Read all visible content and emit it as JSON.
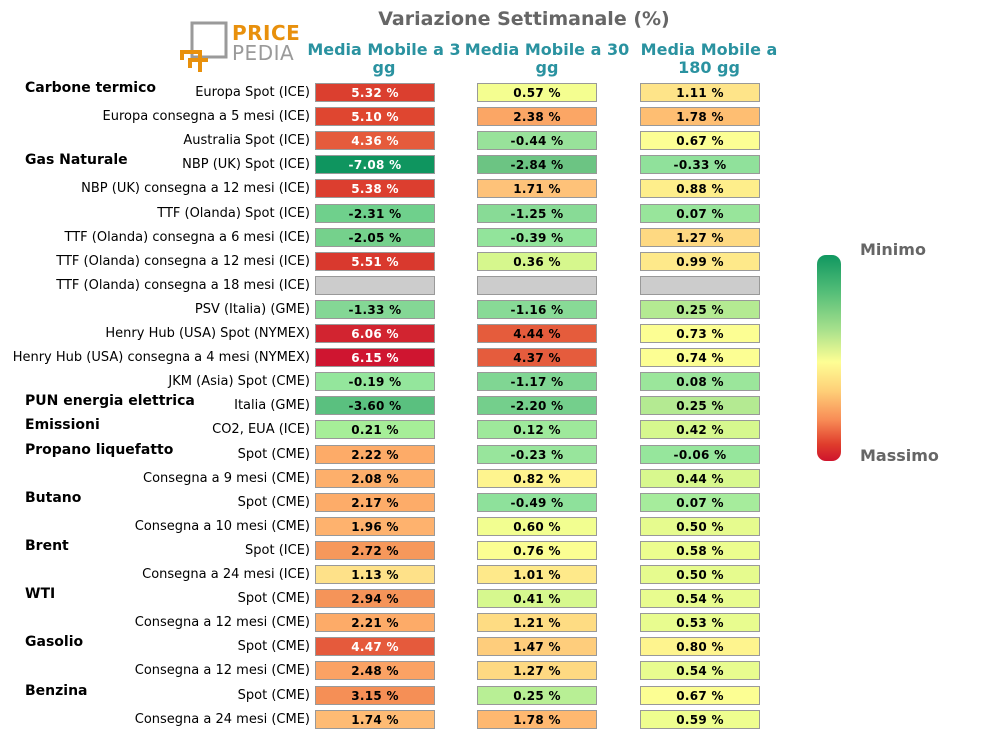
{
  "title": "Variazione Settimanale (%)",
  "logo": {
    "line1": "PRICE",
    "line2": "PEDIA"
  },
  "columns": [
    "Media Mobile a 3 gg",
    "Media Mobile a 30 gg",
    "Media Mobile a 180 gg"
  ],
  "groups": [
    {
      "label": "Carbone termico",
      "row": 0
    },
    {
      "label": "Gas Naturale",
      "row": 3
    },
    {
      "label": "PUN energia elettrica",
      "row": 13
    },
    {
      "label": "Emissioni",
      "row": 14
    },
    {
      "label": "Propano liquefatto",
      "row": 15
    },
    {
      "label": "Butano",
      "row": 17
    },
    {
      "label": "Brent",
      "row": 19
    },
    {
      "label": "WTI",
      "row": 21
    },
    {
      "label": "Gasolio",
      "row": 23
    },
    {
      "label": "Benzina",
      "row": 25
    }
  ],
  "legend": {
    "min_label": "Minimo",
    "max_label": "Massimo"
  },
  "chart_data": {
    "type": "table",
    "title": "Variazione Settimanale (%)",
    "rows": [
      {
        "label": "Europa Spot (ICE)",
        "values": [
          "5.32 %",
          "0.57 %",
          "1.11 %"
        ],
        "colors": [
          "#db3f2f",
          "#f4fe90",
          "#fee489"
        ]
      },
      {
        "label": "Europa consegna a 5 mesi (ICE)",
        "values": [
          "5.10 %",
          "2.38 %",
          "1.78 %"
        ],
        "colors": [
          "#df4630",
          "#fba665",
          "#febe72"
        ]
      },
      {
        "label": "Australia Spot (ICE)",
        "values": [
          "4.36 %",
          "-0.44 %",
          "0.67 %"
        ],
        "colors": [
          "#e55b3c",
          "#98e29a",
          "#fcfe94"
        ]
      },
      {
        "label": "NBP (UK) Spot (ICE)",
        "values": [
          "-7.08 %",
          "-2.84 %",
          "-0.33 %"
        ],
        "colors": [
          "#0f955f",
          "#6cc483",
          "#90e19b"
        ]
      },
      {
        "label": "NBP (UK) consegna a 12 mesi (ICE)",
        "values": [
          "5.38 %",
          "1.71 %",
          "0.88 %"
        ],
        "colors": [
          "#dc3e2f",
          "#fec279",
          "#feee8b"
        ]
      },
      {
        "label": "TTF (Olanda) Spot (ICE)",
        "values": [
          "-2.31 %",
          "-1.25 %",
          "0.07 %"
        ],
        "colors": [
          "#6fd08c",
          "#88db96",
          "#98e59b"
        ]
      },
      {
        "label": "TTF (Olanda) consegna a 6 mesi (ICE)",
        "values": [
          "-2.05 %",
          "-0.39 %",
          "1.27 %"
        ],
        "colors": [
          "#75d18c",
          "#92e49b",
          "#fed982"
        ]
      },
      {
        "label": "TTF (Olanda) consegna a 12 mesi (ICE)",
        "values": [
          "5.51 %",
          "0.36 %",
          "0.99 %"
        ],
        "colors": [
          "#d9392e",
          "#d6f78d",
          "#fee98a"
        ]
      },
      {
        "label": "TTF (Olanda) consegna a 18 mesi (ICE)",
        "values": [
          "",
          "",
          ""
        ],
        "colors": [
          "#cccccc",
          "#cccccc",
          "#cccccc"
        ]
      },
      {
        "label": "PSV (Italia) (GME)",
        "values": [
          "-1.33 %",
          "-1.16 %",
          "0.25 %"
        ],
        "colors": [
          "#84d795",
          "#88da96",
          "#b4ea92"
        ]
      },
      {
        "label": "Henry Hub (USA) Spot (NYMEX)",
        "values": [
          "6.06 %",
          "4.44 %",
          "0.73 %"
        ],
        "colors": [
          "#d22430",
          "#e55c3c",
          "#fcfe93"
        ]
      },
      {
        "label": "Henry Hub (USA) consegna a 4 mesi (NYMEX)",
        "values": [
          "6.15 %",
          "4.37 %",
          "0.74 %"
        ],
        "colors": [
          "#cf1530",
          "#e55c3d",
          "#fcfe93"
        ]
      },
      {
        "label": "JKM (Asia) Spot (CME)",
        "values": [
          "-0.19 %",
          "-1.17 %",
          "0.08 %"
        ],
        "colors": [
          "#94e69c",
          "#80d693",
          "#9be69b"
        ]
      },
      {
        "label": "Italia (GME)",
        "values": [
          "-3.60 %",
          "-2.20 %",
          "0.25 %"
        ],
        "colors": [
          "#5ac07f",
          "#74cf8c",
          "#b4ea92"
        ]
      },
      {
        "label": "CO2, EUA (ICE)",
        "values": [
          "0.21 %",
          "0.12 %",
          "0.42 %"
        ],
        "colors": [
          "#a6ee98",
          "#9ee99b",
          "#d6f88e"
        ]
      },
      {
        "label": "Spot (CME)",
        "values": [
          "2.22 %",
          "-0.23 %",
          "-0.06 %"
        ],
        "colors": [
          "#fdab68",
          "#98e59c",
          "#96e69c"
        ]
      },
      {
        "label": "Consegna a 9 mesi (CME)",
        "values": [
          "2.08 %",
          "0.82 %",
          "0.44 %"
        ],
        "colors": [
          "#fdaf6b",
          "#fef48e",
          "#d8f88e"
        ]
      },
      {
        "label": "Spot (CME)",
        "values": [
          "2.17 %",
          "-0.49 %",
          "0.07 %"
        ],
        "colors": [
          "#fdac69",
          "#8ee19b",
          "#a6ec9c"
        ]
      },
      {
        "label": "Consegna a 10 mesi (CME)",
        "values": [
          "1.96 %",
          "0.60 %",
          "0.50 %"
        ],
        "colors": [
          "#feb26e",
          "#f2fe90",
          "#e6fb8e"
        ]
      },
      {
        "label": "Spot (ICE)",
        "values": [
          "2.72 %",
          "0.76 %",
          "0.58 %"
        ],
        "colors": [
          "#f6985b",
          "#fbfe92",
          "#ecfd8e"
        ]
      },
      {
        "label": "Consegna a 24 mesi (ICE)",
        "values": [
          "1.13 %",
          "1.01 %",
          "0.50 %"
        ],
        "colors": [
          "#fee189",
          "#fee98a",
          "#e6fb8e"
        ]
      },
      {
        "label": "Spot (CME)",
        "values": [
          "2.94 %",
          "0.41 %",
          "0.54 %"
        ],
        "colors": [
          "#f59459",
          "#d6f88e",
          "#e8fc8f"
        ]
      },
      {
        "label": "Consegna a 12 mesi (CME)",
        "values": [
          "2.21 %",
          "1.21 %",
          "0.53 %"
        ],
        "colors": [
          "#fdab68",
          "#fedc83",
          "#e8fc8f"
        ]
      },
      {
        "label": "Spot (CME)",
        "values": [
          "4.47 %",
          "1.47 %",
          "0.80 %"
        ],
        "colors": [
          "#e55a3c",
          "#fecd7c",
          "#fef48e"
        ]
      },
      {
        "label": "Consegna a 12 mesi (CME)",
        "values": [
          "2.48 %",
          "1.27 %",
          "0.54 %"
        ],
        "colors": [
          "#fba264",
          "#fed982",
          "#e8fc8f"
        ]
      },
      {
        "label": "Spot (CME)",
        "values": [
          "3.15 %",
          "0.25 %",
          "0.67 %"
        ],
        "colors": [
          "#f58f56",
          "#b8ef95",
          "#fcfe93"
        ]
      },
      {
        "label": "Consegna a 24 mesi (CME)",
        "values": [
          "1.74 %",
          "1.78 %",
          "0.59 %"
        ],
        "colors": [
          "#febb74",
          "#feb870",
          "#eefe8f"
        ]
      }
    ]
  }
}
